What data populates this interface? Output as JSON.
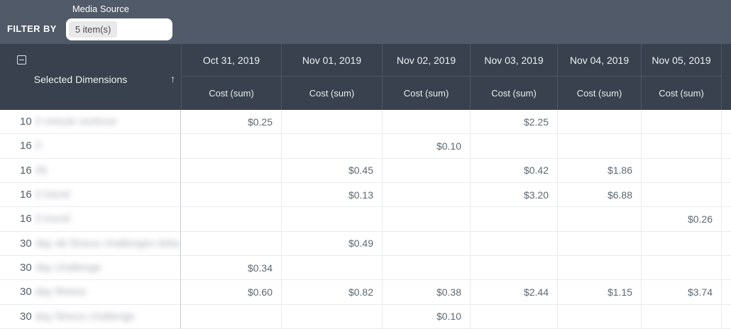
{
  "filter_bar": {
    "filter_by_label": "FILTER BY",
    "field_label": "Media Source",
    "field_value": "5 item(s)"
  },
  "table": {
    "dimension_header": "Selected Dimensions",
    "sort_arrow_glyph": "↑",
    "metric_label": "Cost (sum)",
    "date_columns": [
      "Oct 31, 2019",
      "Nov 01, 2019",
      "Nov 02, 2019",
      "Nov 03, 2019",
      "Nov 04, 2019",
      "Nov 05, 2019"
    ],
    "rows": [
      {
        "prefix": "10",
        "blurred_label": "0 minute workout",
        "suffix": "",
        "values": [
          "$0.25",
          "",
          "",
          "$2.25",
          "",
          ""
        ]
      },
      {
        "prefix": "16",
        "blurred_label": "0",
        "suffix": "",
        "values": [
          "",
          "",
          "$0.10",
          "",
          "",
          ""
        ]
      },
      {
        "prefix": "16",
        "blurred_label": "05",
        "suffix": "",
        "values": [
          "",
          "$0.45",
          "",
          "$0.42",
          "$1.86",
          ""
        ]
      },
      {
        "prefix": "16",
        "blurred_label": "0 travel",
        "suffix": "",
        "values": [
          "",
          "$0.13",
          "",
          "$3.20",
          "$6.88",
          ""
        ]
      },
      {
        "prefix": "16",
        "blurred_label": "0 travel",
        "suffix": "",
        "values": [
          "",
          "",
          "",
          "",
          "",
          "$0.26"
        ]
      },
      {
        "prefix": "30",
        "blurred_label": "day ab fitness challenges debu",
        "suffix": "t",
        "values": [
          "",
          "$0.49",
          "",
          "",
          "",
          ""
        ]
      },
      {
        "prefix": "30",
        "blurred_label": "day challenge",
        "suffix": "",
        "values": [
          "$0.34",
          "",
          "",
          "",
          "",
          ""
        ]
      },
      {
        "prefix": "30",
        "blurred_label": "day fitness",
        "suffix": "",
        "values": [
          "$0.60",
          "$0.82",
          "$0.38",
          "$2.44",
          "$1.15",
          "$3.74"
        ]
      },
      {
        "prefix": "30",
        "blurred_label": "day fitness challenge",
        "suffix": "",
        "values": [
          "",
          "",
          "$0.10",
          "",
          "",
          ""
        ]
      }
    ]
  },
  "colors": {
    "top_bar_bg": "#505a68",
    "table_header_bg": "#38414d",
    "header_border": "#4d5663",
    "value_text": "#5c6872",
    "row_border": "#e9ebee"
  }
}
